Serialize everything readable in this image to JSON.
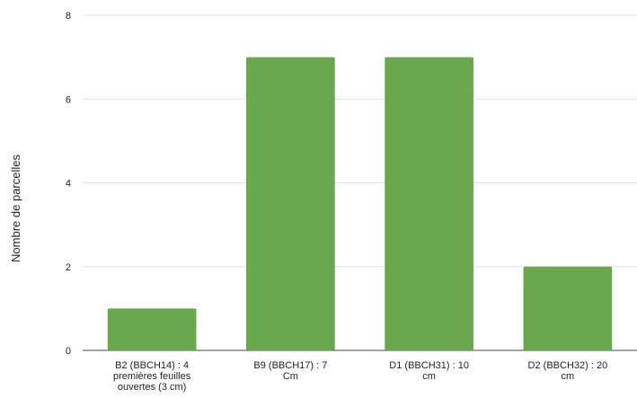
{
  "chart_data": {
    "type": "bar",
    "categories": [
      [
        "B2  (BBCH14) : 4",
        "premières feuilles",
        "ouvertes (3 cm)"
      ],
      [
        "B9 (BBCH17) : 7",
        "Cm"
      ],
      [
        "D1 (BBCH31) : 10",
        "cm"
      ],
      [
        "D2 (BBCH32) : 20",
        "cm"
      ]
    ],
    "values": [
      1,
      7,
      7,
      2
    ],
    "title": "",
    "xlabel": "",
    "ylabel": "Nombre de parcelles",
    "ylim": [
      0,
      8
    ],
    "yticks": [
      0,
      2,
      4,
      6,
      8
    ],
    "grid": true,
    "bar_color": "#6aa84f"
  }
}
